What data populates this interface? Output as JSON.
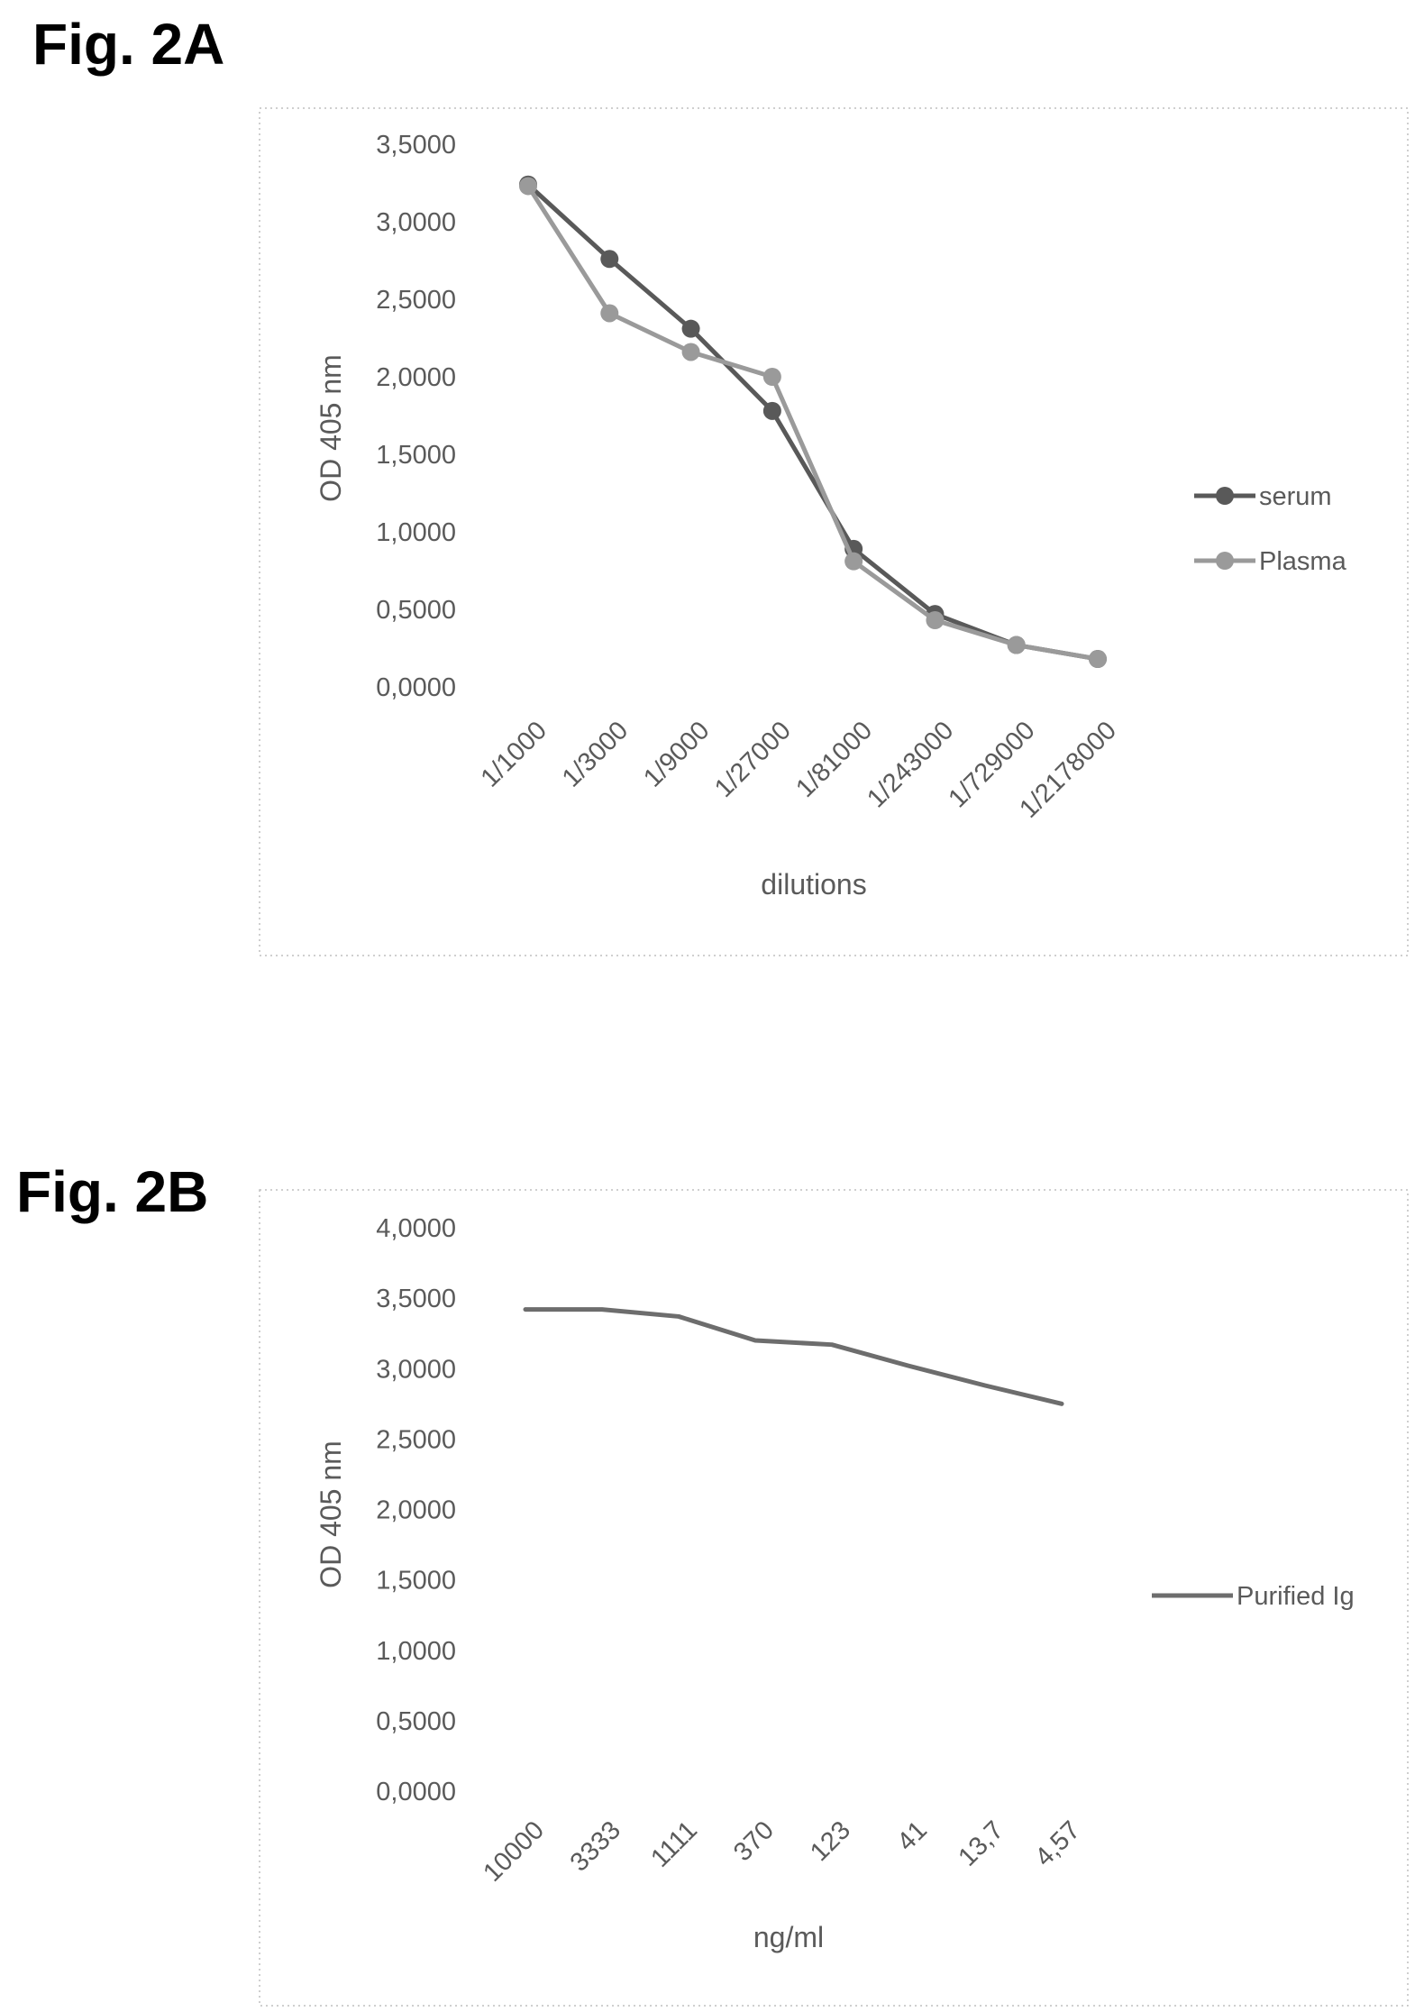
{
  "figures": [
    {
      "title": "Fig. 2A"
    },
    {
      "title": "Fig. 2B"
    }
  ],
  "colors": {
    "serum": "#595959",
    "plasma": "#9a9a9a",
    "purified": "#6d6d6d",
    "text": "#5a5a5a"
  },
  "chart_data": [
    {
      "type": "line",
      "title": "",
      "xlabel": "dilutions",
      "ylabel": "OD 405 nm",
      "ylim": [
        0,
        3.5
      ],
      "yticks": [
        "0,0000",
        "0,5000",
        "1,0000",
        "1,5000",
        "2,0000",
        "2,5000",
        "3,0000",
        "3,5000"
      ],
      "categories": [
        "1/1000",
        "1/3000",
        "1/9000",
        "1/27000",
        "1/81000",
        "1/243000",
        "1/729000",
        "1/2178000"
      ],
      "series": [
        {
          "name": "serum",
          "values": [
            3.24,
            2.76,
            2.31,
            1.78,
            0.89,
            0.47,
            0.27,
            0.18
          ]
        },
        {
          "name": "Plasma",
          "values": [
            3.23,
            2.41,
            2.16,
            2.0,
            0.81,
            0.43,
            0.27,
            0.18
          ]
        }
      ],
      "legend": "right",
      "markers": true,
      "grid": false
    },
    {
      "type": "line",
      "title": "",
      "xlabel": "ng/ml",
      "ylabel": "OD 405 nm",
      "ylim": [
        0,
        4
      ],
      "yticks": [
        "0,0000",
        "0,5000",
        "1,0000",
        "1,5000",
        "2,0000",
        "2,5000",
        "3,0000",
        "3,5000",
        "4,0000"
      ],
      "categories": [
        "10000",
        "3333",
        "1111",
        "370",
        "123",
        "41",
        "13,7",
        "4,57"
      ],
      "series": [
        {
          "name": "Purified Ig",
          "values": [
            3.42,
            3.42,
            3.37,
            3.2,
            3.17,
            3.02,
            2.88,
            2.75
          ]
        }
      ],
      "legend": "right",
      "markers": false,
      "grid": false
    }
  ]
}
